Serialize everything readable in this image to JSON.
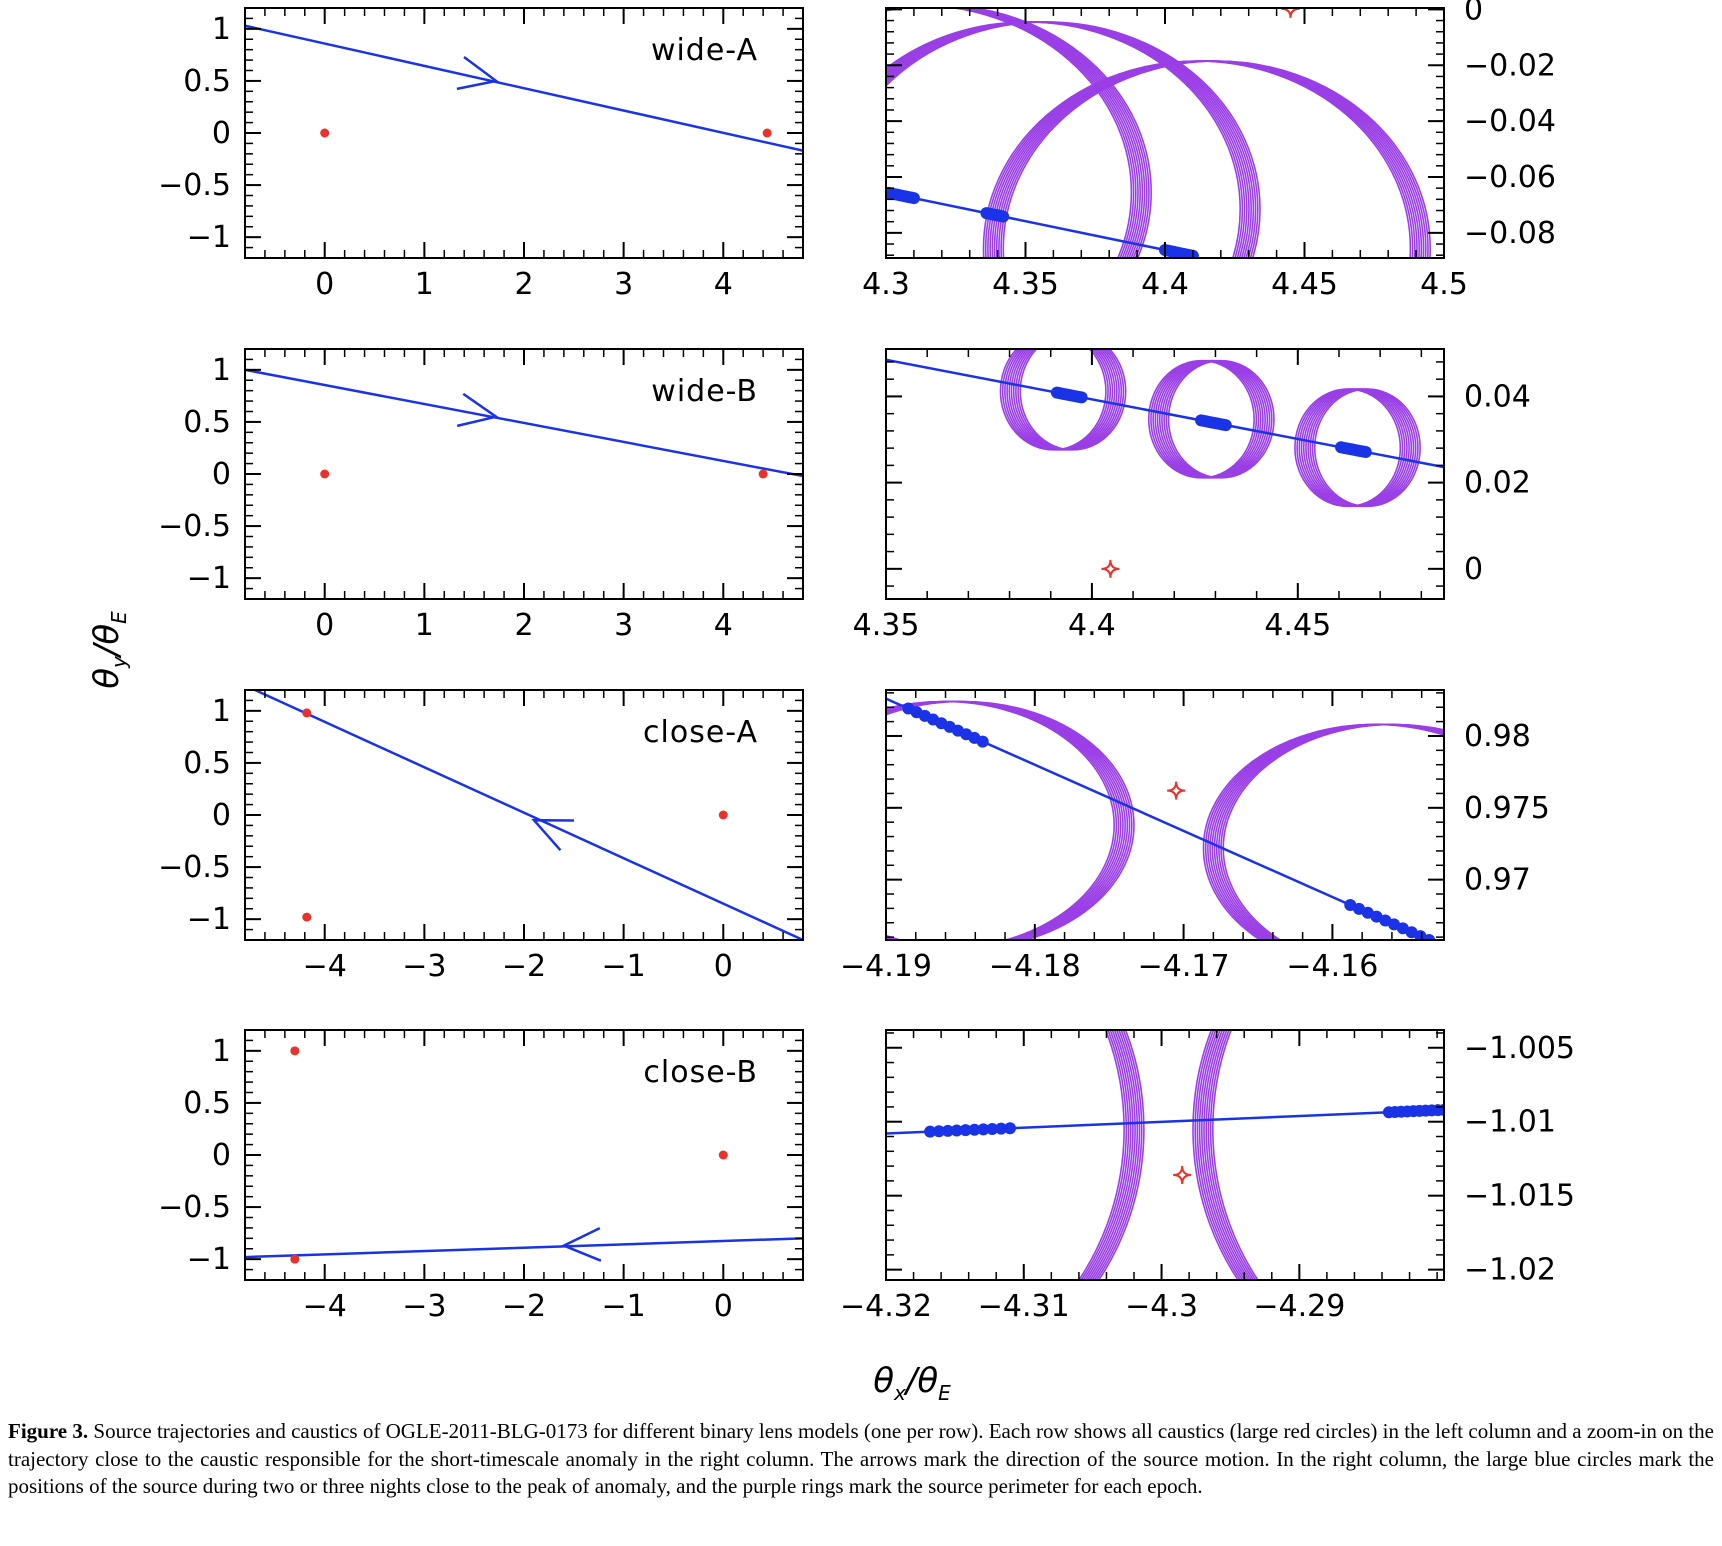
{
  "figure": {
    "ylabel": {
      "theta": "θ",
      "sub1": "y",
      "over": "/θ",
      "sub2": "E"
    },
    "xlabel": {
      "theta": "θ",
      "sub1": "x",
      "over": "/θ",
      "sub2": "E"
    },
    "caption_lead": "Figure 3.",
    "caption_text": " Source trajectories and caustics of OGLE-2011-BLG-0173 for different binary lens models (one per row). Each row shows all caustics (large red circles) in the left column and a zoom-in on the trajectory close to the caustic responsible for the short-timescale anomaly in the right column. The arrows mark the direction of the source motion. In the right column, the large blue circles mark the positions of the source during two or three nights close to the peak of anomaly, and the purple rings mark the source perimeter for each epoch."
  },
  "colors": {
    "trajectory": "#1a33e6",
    "caustic": "#e8322b",
    "ring": "#9a3ee6",
    "axes": "#000000"
  },
  "chart_data": [
    {
      "type": "scatter",
      "panel": "row1-left",
      "label": "wide-A",
      "xlim": [
        -0.8,
        4.8
      ],
      "ylim": [
        -1.2,
        1.2
      ],
      "xticks": [
        0,
        1,
        2,
        3,
        4
      ],
      "yticks": [
        -1,
        -0.5,
        0,
        0.5,
        1
      ],
      "xtick_labels": [
        "0",
        "1",
        "2",
        "3",
        "4"
      ],
      "ytick_labels": [
        "−1",
        "−0.5",
        "0",
        "0.5",
        "1"
      ],
      "trajectory": [
        [
          -0.8,
          1.03
        ],
        [
          4.8,
          -0.17
        ]
      ],
      "arrow": {
        "at": [
          1.72,
          0.5
        ],
        "direction": "right"
      },
      "caustics": [
        [
          0,
          0
        ],
        [
          4.44,
          0
        ]
      ]
    },
    {
      "type": "scatter",
      "panel": "row1-right",
      "xlim": [
        4.3,
        4.5
      ],
      "ylim": [
        -0.089,
        0.0005
      ],
      "xticks": [
        4.3,
        4.35,
        4.4,
        4.45,
        4.5
      ],
      "yticks": [
        0,
        -0.02,
        -0.04,
        -0.06,
        -0.08
      ],
      "xtick_labels": [
        "4.3",
        "4.35",
        "4.4",
        "4.45",
        "4.5"
      ],
      "ytick_labels": [
        "0",
        "−0.02",
        "−0.04",
        "−0.06",
        "−0.08"
      ],
      "trajectory": [
        [
          4.3,
          -0.0655
        ],
        [
          4.41,
          -0.0882
        ]
      ],
      "source_groups": [
        {
          "from": 4.301,
          "to": 4.31
        },
        {
          "from": 4.336,
          "to": 4.342
        },
        {
          "from": 4.4,
          "to": 4.41
        }
      ],
      "rings": [
        {
          "center": [
            4.315,
            -0.0655
          ],
          "rx": 0.0765,
          "ry": 0.067
        },
        {
          "center": [
            4.354,
            -0.0715
          ],
          "rx": 0.0765,
          "ry": 0.067
        },
        {
          "center": [
            4.415,
            -0.0855
          ],
          "rx": 0.0765,
          "ry": 0.067
        }
      ],
      "caustics": [
        [
          4.445,
          0.0002
        ]
      ]
    },
    {
      "type": "scatter",
      "panel": "row2-left",
      "label": "wide-B",
      "xlim": [
        -0.8,
        4.8
      ],
      "ylim": [
        -1.2,
        1.2
      ],
      "xticks": [
        0,
        1,
        2,
        3,
        4
      ],
      "yticks": [
        -1,
        -0.5,
        0,
        0.5,
        1
      ],
      "xtick_labels": [
        "0",
        "1",
        "2",
        "3",
        "4"
      ],
      "ytick_labels": [
        "−1",
        "−0.5",
        "0",
        "0.5",
        "1"
      ],
      "trajectory": [
        [
          -0.8,
          1.0
        ],
        [
          4.8,
          -0.02
        ]
      ],
      "arrow": {
        "at": [
          1.72,
          0.55
        ],
        "direction": "right"
      },
      "caustics": [
        [
          0,
          0
        ],
        [
          4.4,
          0
        ]
      ]
    },
    {
      "type": "scatter",
      "panel": "row2-right",
      "xlim": [
        4.35,
        4.4855
      ],
      "ylim": [
        -0.007,
        0.051
      ],
      "xticks": [
        4.35,
        4.4,
        4.45
      ],
      "yticks": [
        0,
        0.02,
        0.04
      ],
      "xtick_labels": [
        "4.35",
        "4.4",
        "4.45"
      ],
      "ytick_labels": [
        "0",
        "0.02",
        "0.04"
      ],
      "trajectory": [
        [
          4.35,
          0.0485
        ],
        [
          4.4855,
          0.0236
        ]
      ],
      "source_groups": [
        {
          "from": 4.3915,
          "to": 4.3975
        },
        {
          "from": 4.4265,
          "to": 4.4325
        },
        {
          "from": 4.4605,
          "to": 4.4665
        }
      ],
      "rings": [
        {
          "center": [
            4.393,
            0.0412
          ],
          "rx": 0.0128,
          "ry": 0.0136
        },
        {
          "center": [
            4.429,
            0.0347
          ],
          "rx": 0.0128,
          "ry": 0.0136
        },
        {
          "center": [
            4.4645,
            0.0281
          ],
          "rx": 0.0128,
          "ry": 0.0136
        }
      ],
      "caustics": [
        [
          4.4045,
          0.0
        ]
      ]
    },
    {
      "type": "scatter",
      "panel": "row3-left",
      "label": "close-A",
      "xlim": [
        -4.8,
        0.8
      ],
      "ylim": [
        -1.2,
        1.2
      ],
      "xticks": [
        -4,
        -3,
        -2,
        -1,
        0
      ],
      "yticks": [
        -1,
        -0.5,
        0,
        0.5,
        1
      ],
      "xtick_labels": [
        "−4",
        "−3",
        "−2",
        "−1",
        "0"
      ],
      "ytick_labels": [
        "−1",
        "−0.5",
        "0",
        "0.5",
        "1"
      ],
      "trajectory": [
        [
          -4.7,
          1.2
        ],
        [
          0.8,
          -1.2
        ]
      ],
      "arrow": {
        "at": [
          -1.9,
          -0.05
        ],
        "direction": "left"
      },
      "caustics": [
        [
          -4.18,
          0.98
        ],
        [
          -4.18,
          -0.98
        ],
        [
          0,
          0
        ]
      ]
    },
    {
      "type": "scatter",
      "panel": "row3-right",
      "xlim": [
        -4.19,
        -4.1525
      ],
      "ylim": [
        0.9658,
        0.9832
      ],
      "xticks": [
        -4.19,
        -4.18,
        -4.17,
        -4.16
      ],
      "yticks": [
        0.97,
        0.975,
        0.98
      ],
      "xtick_labels": [
        "−4.19",
        "−4.18",
        "−4.17",
        "−4.16"
      ],
      "ytick_labels": [
        "0.97",
        "0.975",
        "0.98"
      ],
      "trajectory": [
        [
          -4.19,
          0.9826
        ],
        [
          -4.1535,
          0.9658
        ]
      ],
      "source_groups": [
        {
          "from": -4.1885,
          "to": -4.1835
        },
        {
          "from": -4.1588,
          "to": -4.1535
        }
      ],
      "rings": [
        {
          "center": [
            -4.1855,
            0.9738
          ],
          "rx": 0.0115,
          "ry": 0.0086
        },
        {
          "center": [
            -4.1565,
            0.9722
          ],
          "rx": 0.0115,
          "ry": 0.0086
        }
      ],
      "caustics": [
        [
          -4.1705,
          0.9762
        ]
      ]
    },
    {
      "type": "scatter",
      "panel": "row4-left",
      "label": "close-B",
      "xlim": [
        -4.8,
        0.8
      ],
      "ylim": [
        -1.2,
        1.2
      ],
      "xticks": [
        -4,
        -3,
        -2,
        -1,
        0
      ],
      "yticks": [
        -1,
        -0.5,
        0,
        0.5,
        1
      ],
      "xtick_labels": [
        "−4",
        "−3",
        "−2",
        "−1",
        "0"
      ],
      "ytick_labels": [
        "−1",
        "−0.5",
        "0",
        "0.5",
        "1"
      ],
      "trajectory": [
        [
          -4.8,
          -0.98
        ],
        [
          0.8,
          -0.8
        ]
      ],
      "arrow": {
        "at": [
          -1.6,
          -0.87
        ],
        "direction": "left"
      },
      "caustics": [
        [
          -4.3,
          1.0
        ],
        [
          -4.3,
          -1.0
        ],
        [
          0,
          0
        ]
      ]
    },
    {
      "type": "scatter",
      "panel": "row4-right",
      "xlim": [
        -4.32,
        -4.2795
      ],
      "ylim": [
        -1.0207,
        -1.0038
      ],
      "xticks": [
        -4.32,
        -4.31,
        -4.3,
        -4.29
      ],
      "yticks": [
        -1.005,
        -1.01,
        -1.015,
        -1.02
      ],
      "xtick_labels": [
        "−4.32",
        "−4.31",
        "−4.3",
        "−4.29"
      ],
      "ytick_labels": [
        "−1.005",
        "−1.01",
        "−1.015",
        "−1.02"
      ],
      "trajectory": [
        [
          -4.32,
          -1.0108
        ],
        [
          -4.2795,
          -1.0092
        ]
      ],
      "source_groups": [
        {
          "from": -4.3168,
          "to": -4.311
        },
        {
          "from": -4.2835,
          "to": -4.2795
        }
      ],
      "rings": [
        {
          "center": [
            -4.3195,
            -1.0105
          ],
          "rx": 0.0175,
          "ry": 0.0175
        },
        {
          "center": [
            -4.2795,
            -1.0105
          ],
          "rx": 0.0175,
          "ry": 0.0175
        }
      ],
      "caustics": [
        [
          -4.2985,
          -1.0136
        ]
      ]
    }
  ]
}
